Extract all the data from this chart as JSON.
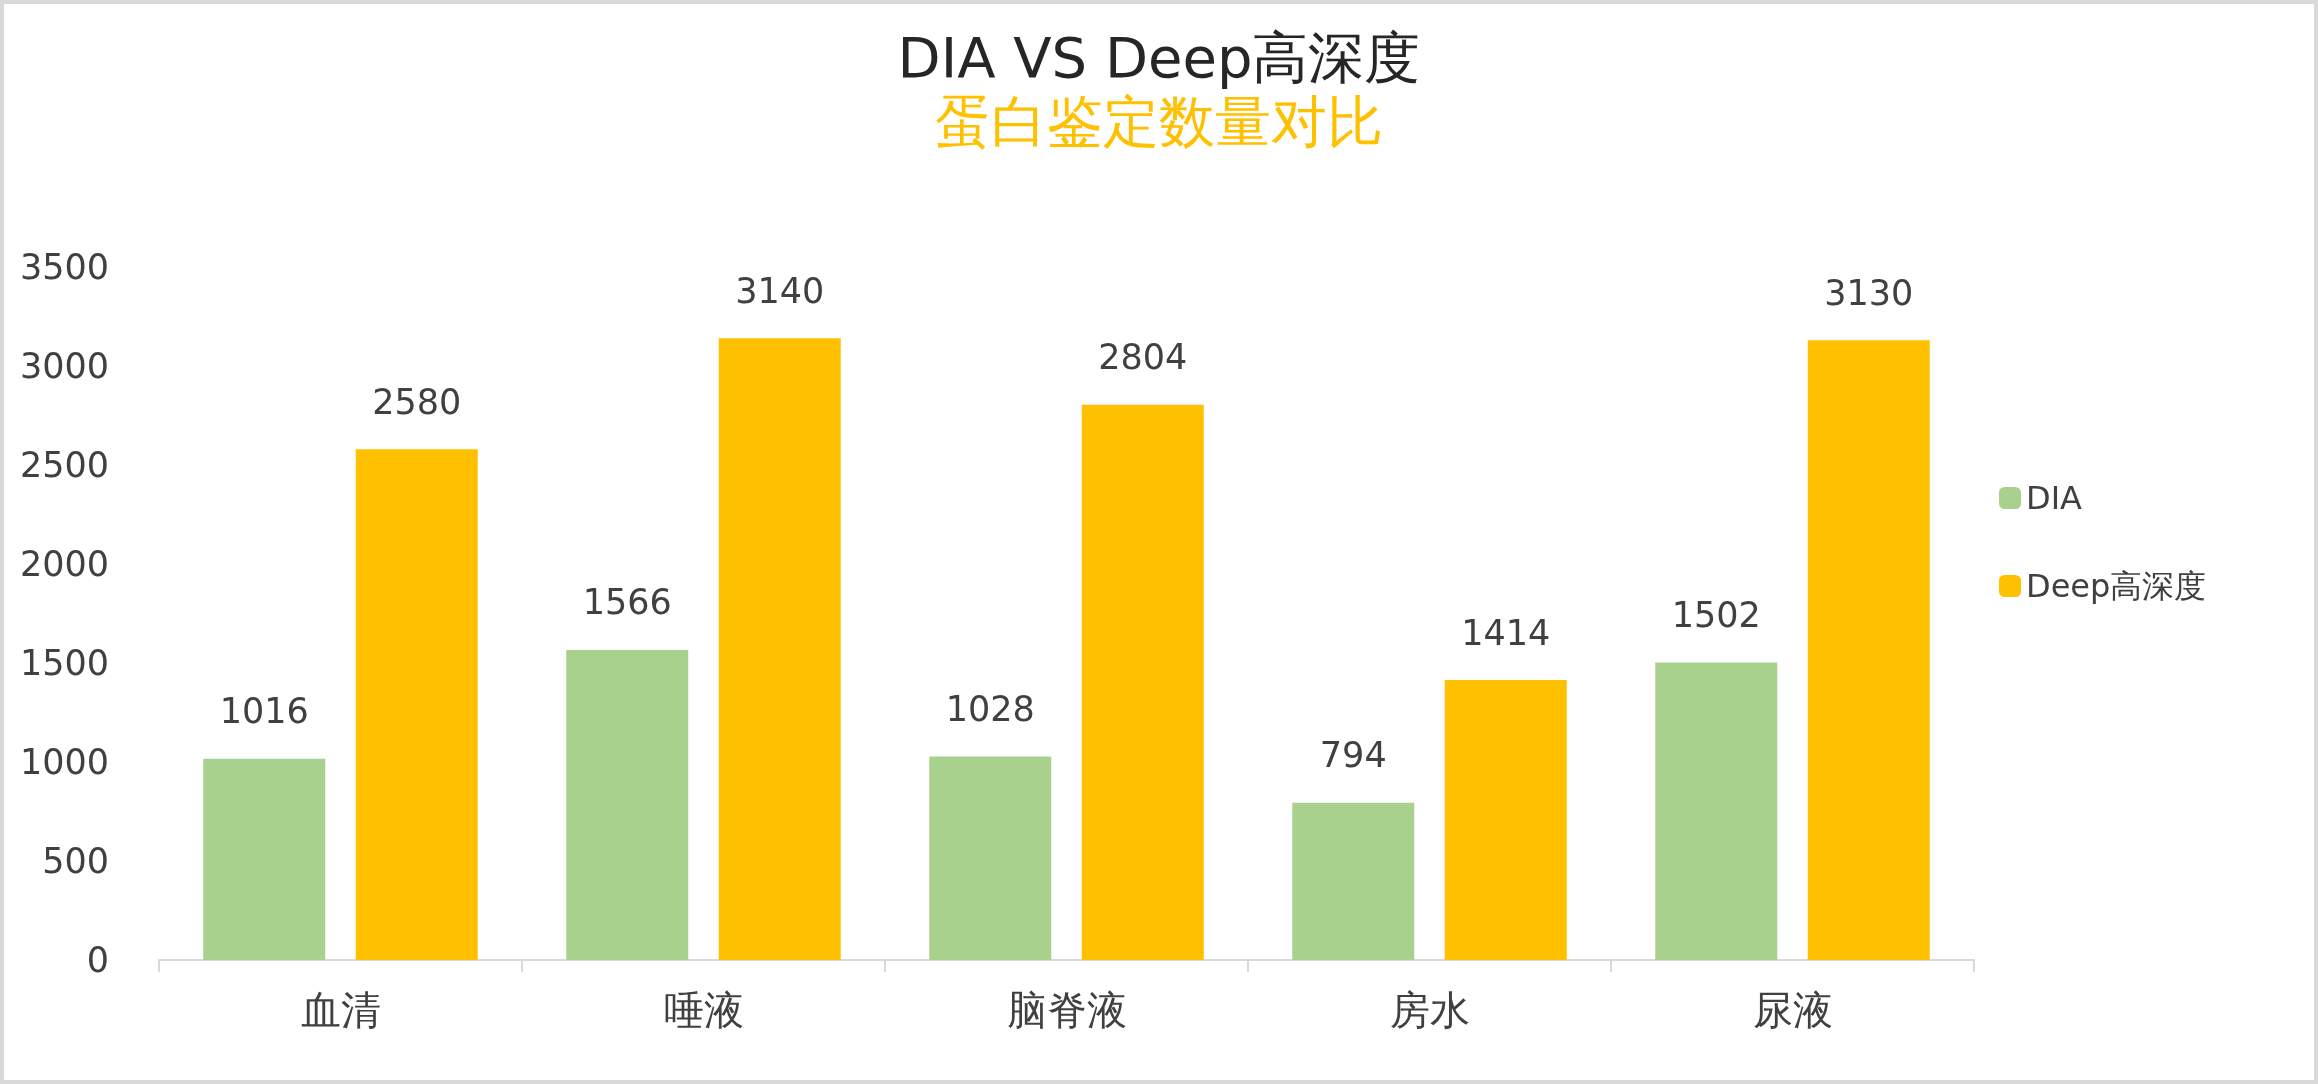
{
  "chart_data": {
    "type": "bar",
    "title": "DIA VS Deep高深度",
    "subtitle": "蛋白鉴定数量对比",
    "categories": [
      "血清",
      "唾液",
      "脑脊液",
      "房水",
      "尿液"
    ],
    "series": [
      {
        "name": "DIA",
        "color": "#a9d18e",
        "values": [
          1016,
          1566,
          1028,
          794,
          1502
        ]
      },
      {
        "name": "Deep高深度",
        "color": "#ffc000",
        "values": [
          2580,
          3140,
          2804,
          1414,
          3130
        ]
      }
    ],
    "ylim": [
      0,
      3500
    ],
    "yticks": [
      0,
      500,
      1000,
      1500,
      2000,
      2500,
      3000,
      3500
    ],
    "data_labels": true,
    "grid": false,
    "legend": "right"
  }
}
